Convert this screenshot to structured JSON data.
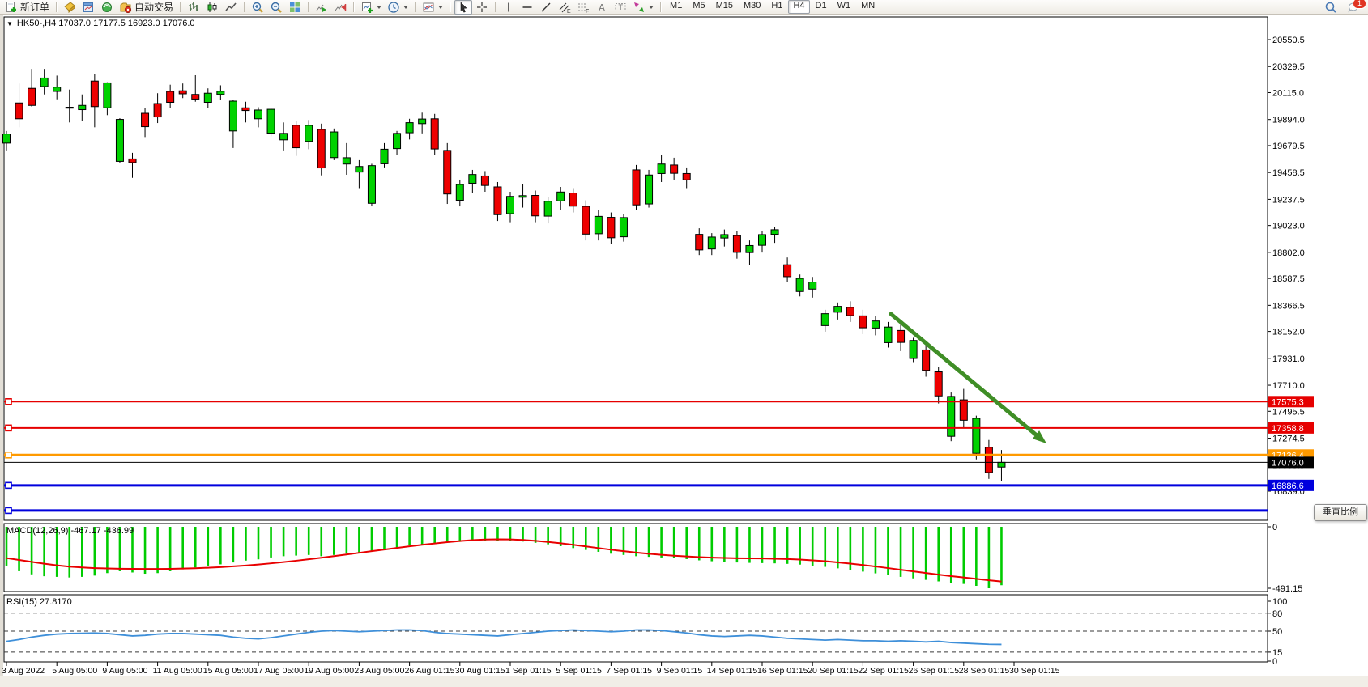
{
  "toolbar": {
    "groups": [
      {
        "items": [
          {
            "name": "new-order-button",
            "icon": "new-order-icon",
            "label": "新订单"
          }
        ]
      },
      {
        "items": [
          {
            "name": "indicators-list-button",
            "icon": "indicator-doc-icon"
          },
          {
            "name": "market-watch-button",
            "icon": "chart-window-icon"
          },
          {
            "name": "sound-alert-button",
            "icon": "sound-icon"
          },
          {
            "name": "auto-trading-button",
            "icon": "auto-trading-icon",
            "label": "自动交易"
          }
        ]
      },
      {
        "items": [
          {
            "name": "bar-chart-button",
            "icon": "bar-chart-icon"
          },
          {
            "name": "candlestick-button",
            "icon": "candlestick-icon"
          },
          {
            "name": "line-chart-button",
            "icon": "line-chart-icon"
          }
        ]
      },
      {
        "items": [
          {
            "name": "zoom-in-button",
            "icon": "zoom-in-icon"
          },
          {
            "name": "zoom-out-button",
            "icon": "zoom-out-icon"
          },
          {
            "name": "tile-windows-button",
            "icon": "tile-windows-icon"
          }
        ]
      },
      {
        "items": [
          {
            "name": "auto-scroll-button",
            "icon": "auto-scroll-icon"
          },
          {
            "name": "chart-shift-button",
            "icon": "chart-shift-icon"
          }
        ]
      },
      {
        "items": [
          {
            "name": "new-chart-button",
            "icon": "new-chart-icon",
            "dropdown": true
          },
          {
            "name": "periods-button",
            "icon": "clock-icon",
            "dropdown": true
          }
        ]
      },
      {
        "items": [
          {
            "name": "templates-button",
            "icon": "templates-icon",
            "dropdown": true
          }
        ]
      },
      {
        "items": [
          {
            "name": "cursor-button",
            "icon": "cursor-icon",
            "active": true
          },
          {
            "name": "crosshair-button",
            "icon": "crosshair-icon"
          }
        ]
      },
      {
        "items": [
          {
            "name": "vertical-line-button",
            "icon": "vertical-line-icon"
          },
          {
            "name": "horizontal-line-button",
            "icon": "horizontal-line-icon"
          },
          {
            "name": "trendline-button",
            "icon": "trendline-icon"
          },
          {
            "name": "channel-button",
            "icon": "channel-icon"
          },
          {
            "name": "fibonacci-button",
            "icon": "fibonacci-icon"
          },
          {
            "name": "text-button",
            "icon": "text-icon"
          },
          {
            "name": "text-label-button",
            "icon": "text-label-icon"
          },
          {
            "name": "arrows-button",
            "icon": "arrows-icon",
            "dropdown": true
          }
        ]
      }
    ],
    "timeframes": [
      "M1",
      "M5",
      "M15",
      "M30",
      "H1",
      "H4",
      "D1",
      "W1",
      "MN"
    ],
    "active_timeframe": "H4",
    "right_icons": [
      {
        "name": "search-button",
        "icon": "search-icon"
      },
      {
        "name": "notifications-button",
        "icon": "chat-icon",
        "badge": "1"
      }
    ]
  },
  "header": {
    "symbol_line": "HK50-,H4  17037.0 17177.5 16923.0 17076.0"
  },
  "indicators": {
    "macd_label": "MACD(12,26,9) -467.17 -436.99",
    "rsi_label": "RSI(15) 27.8170"
  },
  "tooltip": {
    "text": "垂直比例"
  },
  "chart_data": {
    "type": "candlestick",
    "symbol": "HK50-",
    "timeframe": "H4",
    "last_quote": {
      "open": 17037.0,
      "high": 17177.5,
      "low": 16923.0,
      "close": 17076.0
    },
    "current_price": 17076.0,
    "price_ticks": [
      20550.5,
      20329.5,
      20115.0,
      19894.0,
      19679.5,
      19458.5,
      19237.5,
      19023.0,
      18802.0,
      18587.5,
      18366.5,
      18152.0,
      17931.0,
      17710.0,
      17495.5,
      17274.5,
      17053.5,
      16839.0
    ],
    "time_labels": [
      "3 Aug 2022",
      "5 Aug 05:00",
      "9 Aug 05:00",
      "11 Aug 05:00",
      "15 Aug 05:00",
      "17 Aug 05:00",
      "19 Aug 05:00",
      "23 Aug 05:00",
      "26 Aug 01:15",
      "30 Aug 01:15",
      "1 Sep 01:15",
      "5 Sep 01:15",
      "7 Sep 01:15",
      "9 Sep 01:15",
      "14 Sep 01:15",
      "16 Sep 01:15",
      "20 Sep 01:15",
      "22 Sep 01:15",
      "26 Sep 01:15",
      "28 Sep 01:15",
      "30 Sep 01:15"
    ],
    "bars_per_label": 4,
    "candles": [
      [
        19700,
        19800,
        19640,
        19775
      ],
      [
        20030,
        20190,
        19830,
        19900
      ],
      [
        20150,
        20310,
        20000,
        20010
      ],
      [
        20165,
        20310,
        20100,
        20235
      ],
      [
        20125,
        20255,
        20060,
        20160
      ],
      [
        19995,
        20140,
        19870,
        19990
      ],
      [
        19975,
        20100,
        19880,
        20010
      ],
      [
        20210,
        20265,
        19830,
        20000
      ],
      [
        19990,
        20200,
        19930,
        20195
      ],
      [
        19550,
        19905,
        19540,
        19895
      ],
      [
        19570,
        19620,
        19415,
        19540
      ],
      [
        19945,
        19990,
        19750,
        19835
      ],
      [
        20025,
        20110,
        19865,
        19915
      ],
      [
        20125,
        20180,
        19990,
        20035
      ],
      [
        20130,
        20190,
        20070,
        20105
      ],
      [
        20100,
        20258,
        20040,
        20062
      ],
      [
        20035,
        20150,
        19990,
        20110
      ],
      [
        20100,
        20175,
        20055,
        20126
      ],
      [
        19800,
        20055,
        19660,
        20045
      ],
      [
        19990,
        20040,
        19870,
        19968
      ],
      [
        19900,
        19995,
        19830,
        19972
      ],
      [
        19782,
        19990,
        19755,
        19978
      ],
      [
        19727,
        19870,
        19640,
        19780
      ],
      [
        19847,
        19880,
        19595,
        19662
      ],
      [
        19714,
        19890,
        19650,
        19846
      ],
      [
        19813,
        19860,
        19435,
        19496
      ],
      [
        19581,
        19820,
        19560,
        19792
      ],
      [
        19528,
        19700,
        19440,
        19580
      ],
      [
        19462,
        19560,
        19330,
        19508
      ],
      [
        19205,
        19530,
        19180,
        19515
      ],
      [
        19530,
        19700,
        19500,
        19650
      ],
      [
        19655,
        19800,
        19600,
        19780
      ],
      [
        19785,
        19900,
        19730,
        19868
      ],
      [
        19860,
        19950,
        19780,
        19898
      ],
      [
        19900,
        19940,
        19600,
        19652
      ],
      [
        19640,
        19700,
        19200,
        19282
      ],
      [
        19230,
        19400,
        19180,
        19360
      ],
      [
        19370,
        19480,
        19290,
        19442
      ],
      [
        19430,
        19470,
        19300,
        19352
      ],
      [
        19340,
        19380,
        19060,
        19112
      ],
      [
        19120,
        19300,
        19050,
        19262
      ],
      [
        19255,
        19360,
        19170,
        19268
      ],
      [
        19270,
        19310,
        19050,
        19102
      ],
      [
        19100,
        19260,
        19040,
        19222
      ],
      [
        19225,
        19340,
        19150,
        19298
      ],
      [
        19290,
        19330,
        19130,
        19182
      ],
      [
        19180,
        19230,
        18900,
        18952
      ],
      [
        18955,
        19150,
        18900,
        19098
      ],
      [
        19090,
        19130,
        18870,
        18922
      ],
      [
        18930,
        19120,
        18890,
        19088
      ],
      [
        19480,
        19520,
        19150,
        19192
      ],
      [
        19200,
        19480,
        19170,
        19438
      ],
      [
        19450,
        19600,
        19380,
        19528
      ],
      [
        19520,
        19580,
        19400,
        19452
      ],
      [
        19450,
        19500,
        19330,
        19398
      ],
      [
        18950,
        19000,
        18780,
        18822
      ],
      [
        18830,
        18960,
        18780,
        18928
      ],
      [
        18920,
        18990,
        18850,
        18948
      ],
      [
        18940,
        18980,
        18750,
        18802
      ],
      [
        18800,
        18900,
        18700,
        18858
      ],
      [
        18860,
        18980,
        18800,
        18948
      ],
      [
        18950,
        19010,
        18880,
        18988
      ],
      [
        18700,
        18760,
        18560,
        18602
      ],
      [
        18480,
        18620,
        18440,
        18588
      ],
      [
        18500,
        18600,
        18430,
        18558
      ],
      [
        18200,
        18330,
        18150,
        18298
      ],
      [
        18310,
        18390,
        18250,
        18358
      ],
      [
        18350,
        18400,
        18230,
        18282
      ],
      [
        18280,
        18330,
        18130,
        18182
      ],
      [
        18180,
        18280,
        18120,
        18238
      ],
      [
        18060,
        18230,
        18020,
        18188
      ],
      [
        18160,
        18210,
        17990,
        18062
      ],
      [
        17930,
        18100,
        17900,
        18078
      ],
      [
        18000,
        18040,
        17780,
        17832
      ],
      [
        17820,
        17860,
        17560,
        17622
      ],
      [
        17290,
        17650,
        17250,
        17618
      ],
      [
        17590,
        17680,
        17360,
        17422
      ],
      [
        17150,
        17460,
        17100,
        17438
      ],
      [
        17200,
        17260,
        16940,
        16992
      ],
      [
        17037,
        17177.5,
        16923,
        17076
      ]
    ],
    "levels": [
      {
        "price": 17575.3,
        "color": "#e60000",
        "width": 2,
        "anchor": true,
        "badge": true,
        "label": "17575.3"
      },
      {
        "price": 17358.8,
        "color": "#e60000",
        "width": 2,
        "anchor": true,
        "badge": true,
        "label": "17358.8"
      },
      {
        "price": 17136.4,
        "color": "#ff9a00",
        "width": 3,
        "anchor": true,
        "badge": true,
        "label": "17136.4"
      },
      {
        "price": 17076.0,
        "color": "#000000",
        "width": 1,
        "anchor": false,
        "badge": true,
        "label": "17076.0"
      },
      {
        "price": 16886.6,
        "color": "#0000dd",
        "width": 3,
        "anchor": true,
        "badge": true,
        "label": "16886.6"
      },
      {
        "price": 16680.0,
        "color": "#0000dd",
        "width": 3,
        "anchor": true,
        "badge": false,
        "label": ""
      }
    ],
    "macd": {
      "params": "12,26,9",
      "value": -467.17,
      "signal_value": -436.99,
      "scale_max": 0,
      "scale_min": -491.15,
      "histogram": [
        -310,
        -355,
        -380,
        -395,
        -400,
        -405,
        -400,
        -390,
        -370,
        -355,
        -365,
        -375,
        -370,
        -355,
        -340,
        -325,
        -310,
        -300,
        -285,
        -270,
        -260,
        -245,
        -235,
        -230,
        -225,
        -235,
        -225,
        -215,
        -205,
        -195,
        -180,
        -165,
        -150,
        -140,
        -135,
        -125,
        -120,
        -115,
        -112,
        -110,
        -112,
        -118,
        -128,
        -140,
        -155,
        -170,
        -185,
        -200,
        -215,
        -225,
        -235,
        -240,
        -245,
        -250,
        -258,
        -268,
        -275,
        -280,
        -285,
        -288,
        -290,
        -292,
        -296,
        -302,
        -310,
        -320,
        -332,
        -345,
        -358,
        -372,
        -386,
        -400,
        -412,
        -424,
        -436,
        -446,
        -456,
        -472,
        -491.15,
        -467.17
      ],
      "signal": [
        -250,
        -265,
        -280,
        -295,
        -308,
        -318,
        -325,
        -330,
        -333,
        -335,
        -336,
        -337,
        -337,
        -336,
        -334,
        -331,
        -327,
        -322,
        -316,
        -309,
        -301,
        -292,
        -282,
        -271,
        -259,
        -247,
        -234,
        -221,
        -208,
        -195,
        -182,
        -169,
        -156,
        -144,
        -133,
        -123,
        -114,
        -107,
        -102,
        -100,
        -101,
        -105,
        -112,
        -121,
        -132,
        -144,
        -157,
        -170,
        -183,
        -195,
        -206,
        -216,
        -224,
        -231,
        -237,
        -242,
        -246,
        -249,
        -251,
        -252,
        -253,
        -255,
        -258,
        -262,
        -268,
        -275,
        -284,
        -294,
        -305,
        -317,
        -330,
        -343,
        -356,
        -369,
        -382,
        -394,
        -405,
        -416,
        -427,
        -436.99
      ]
    },
    "rsi": {
      "period": 15,
      "value": 27.817,
      "scale_ticks": [
        100,
        80,
        50,
        15,
        0
      ],
      "dashed_levels": [
        80,
        50,
        15
      ],
      "series": [
        33,
        36,
        40,
        43,
        45,
        46,
        46.5,
        47,
        46,
        44,
        42,
        43,
        45,
        46,
        46,
        45,
        44,
        43,
        40,
        38,
        37,
        39,
        42,
        45,
        48,
        50,
        51,
        50,
        49,
        50,
        51,
        52,
        52,
        51,
        48,
        46,
        45,
        44,
        43,
        42,
        44,
        46,
        48,
        50,
        51,
        52,
        51,
        50,
        49,
        50,
        52,
        52,
        51,
        49,
        47,
        44,
        42,
        41,
        42,
        43,
        42,
        40,
        38,
        37,
        36,
        35,
        36,
        35,
        34,
        34,
        33,
        34,
        33,
        32,
        33,
        31,
        30,
        29,
        28,
        27.817
      ]
    },
    "arrow": {
      "from": [
        1100,
        388
      ],
      "to": [
        1292,
        548
      ],
      "color": "#3f8e26"
    },
    "colors": {
      "up": "#00d200",
      "down": "#ee0000",
      "outline": "#000000",
      "macd_hist": "#00cc00",
      "macd_signal": "#e80000",
      "rsi_line": "#3e8fd9"
    }
  }
}
